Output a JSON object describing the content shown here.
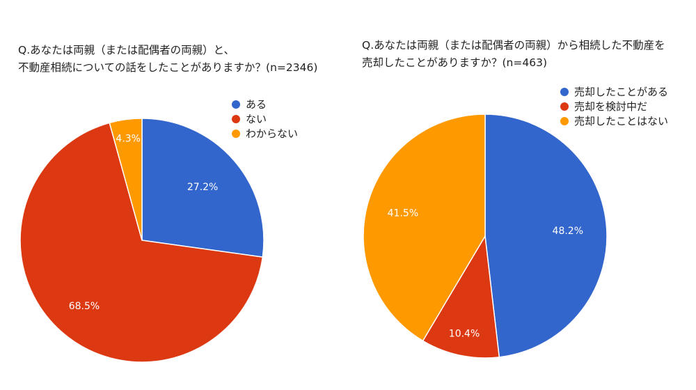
{
  "chart_data": [
    {
      "type": "pie",
      "title_lines": [
        "Q.あなたは両親（または配偶者の両親）と、",
        "不動産相続についての話をしたことがありますか？(n=2346)"
      ],
      "slices": [
        {
          "label": "ある",
          "value": 27.2,
          "value_label": "27.2%",
          "color": "#3366CC"
        },
        {
          "label": "ない",
          "value": 68.5,
          "value_label": "68.5%",
          "color": "#DC3912"
        },
        {
          "label": "わからない",
          "value": 4.3,
          "value_label": "4.3%",
          "color": "#FF9900"
        }
      ],
      "start": "12 o'clock",
      "direction": "clockwise",
      "legend_position": "top-right"
    },
    {
      "type": "pie",
      "title_lines": [
        "Q.あなたは両親（または配偶者の両親）から相続した不動産を",
        "売却したことがありますか？(n=463)"
      ],
      "slices": [
        {
          "label": "売却したことがある",
          "value": 48.2,
          "value_label": "48.2%",
          "color": "#3366CC"
        },
        {
          "label": "売却を検討中だ",
          "value": 10.4,
          "value_label": "10.4%",
          "color": "#DC3912"
        },
        {
          "label": "売却したことはない",
          "value": 41.5,
          "value_label": "41.5%",
          "color": "#FF9900"
        }
      ],
      "start": "12 o'clock",
      "direction": "clockwise",
      "legend_position": "top-right"
    }
  ]
}
